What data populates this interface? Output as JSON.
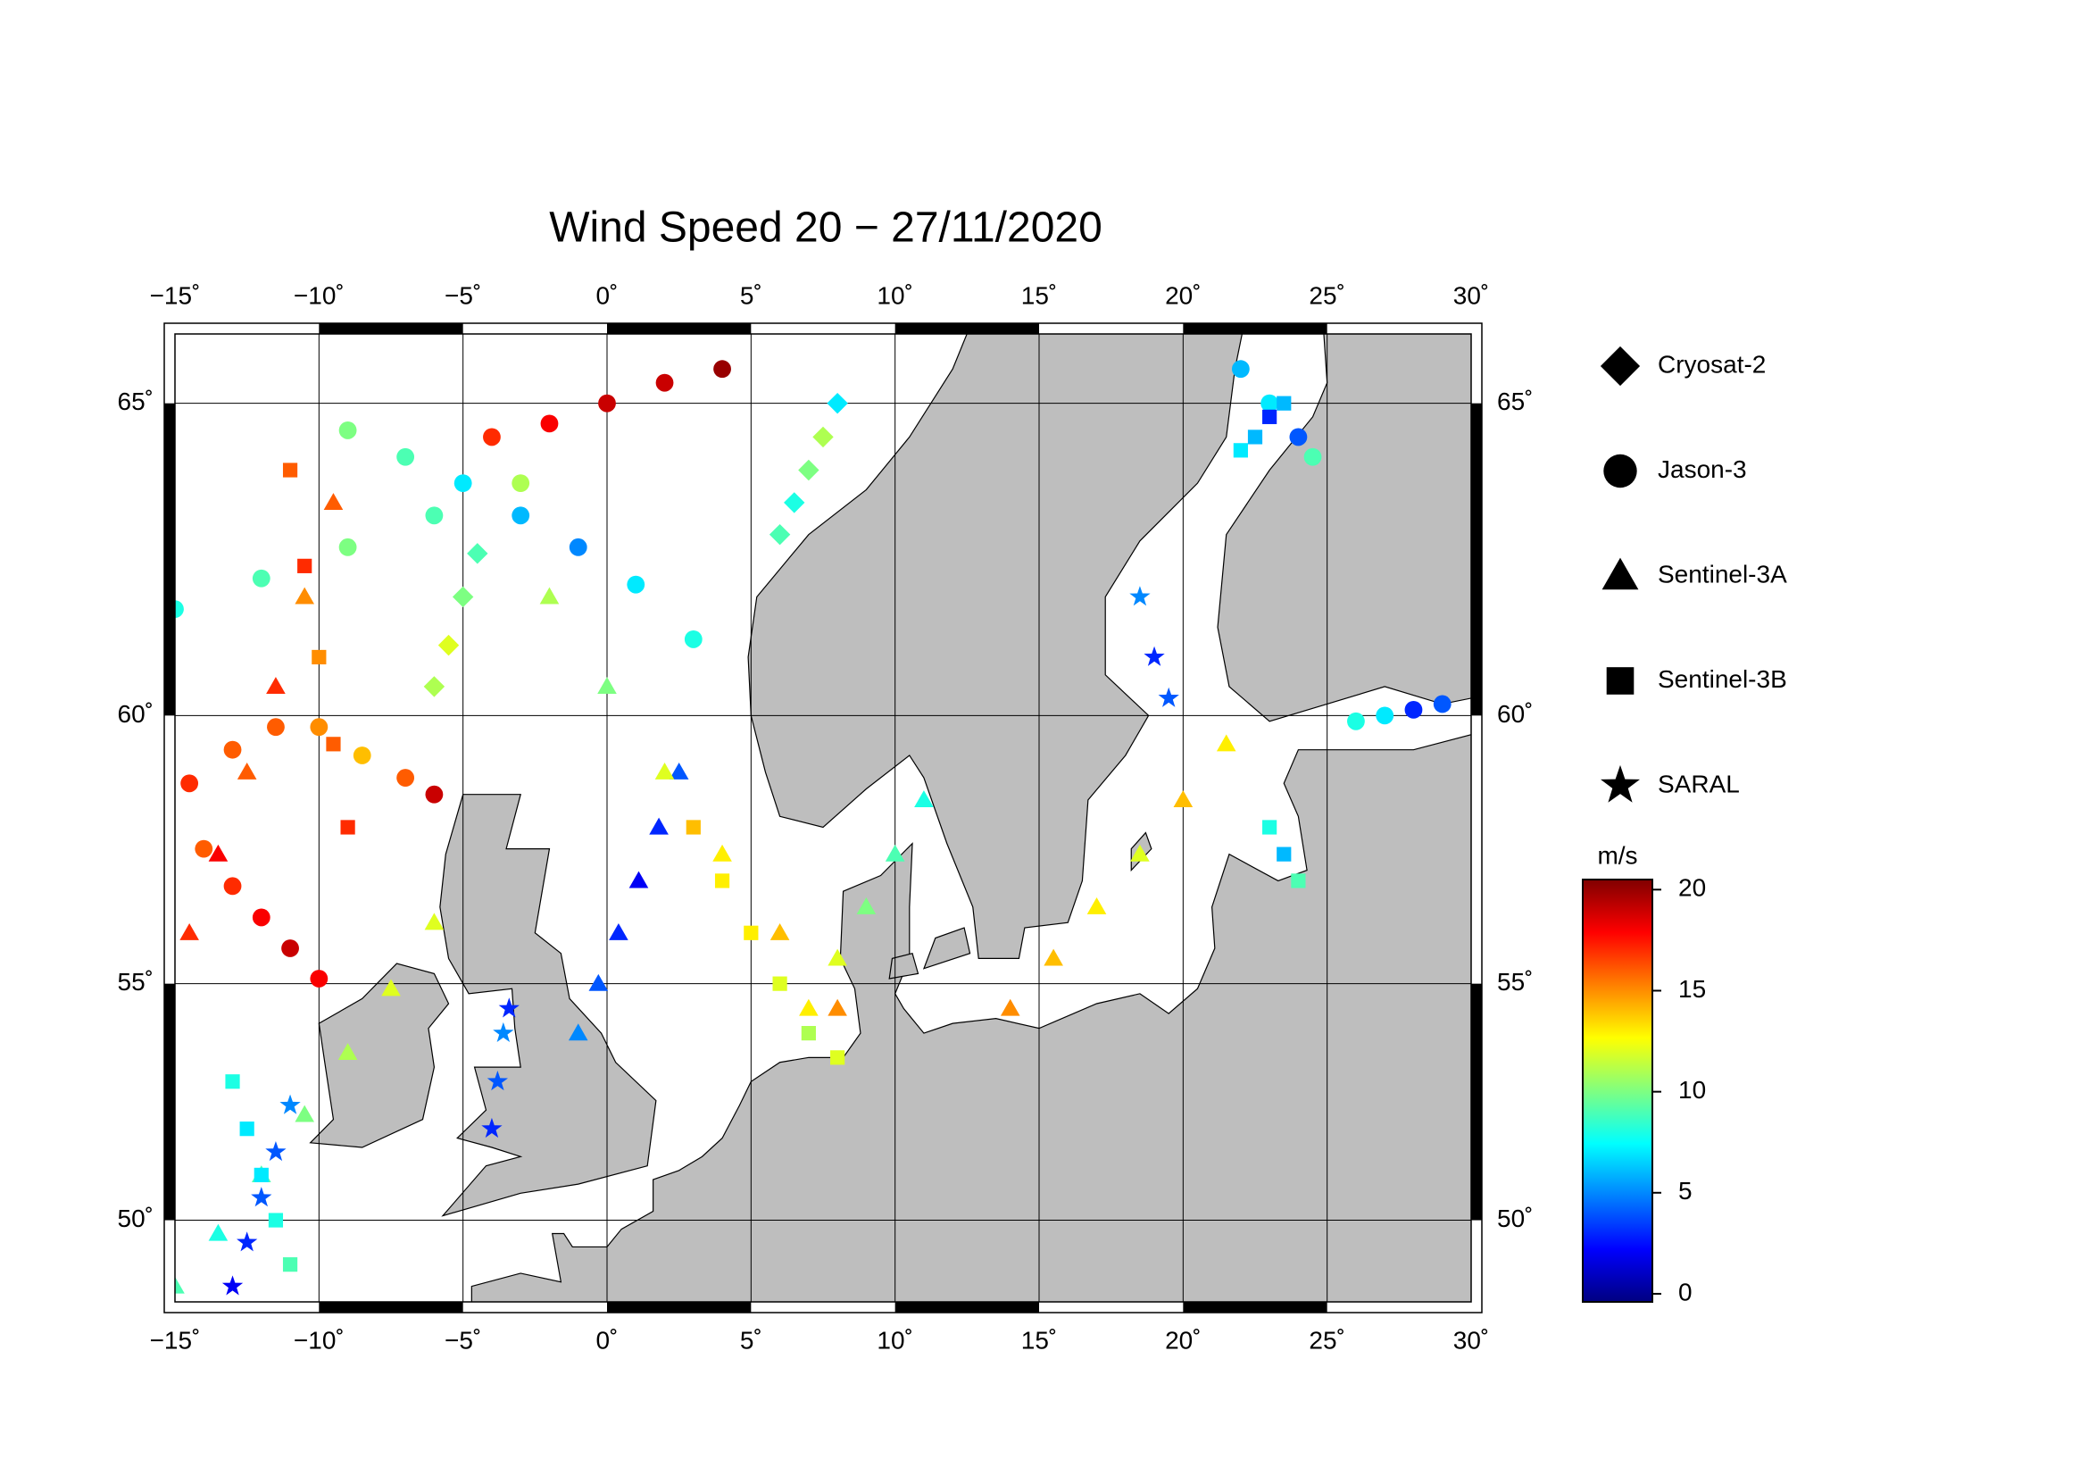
{
  "chart_data": {
    "type": "map",
    "title": "Wind Speed 20 − 27/11/2020",
    "xlim": [
      -15,
      30
    ],
    "ylim": [
      48.14,
      66
    ],
    "xticks": [
      {
        "value": -15,
        "label": "−15˚"
      },
      {
        "value": -10,
        "label": "−10˚"
      },
      {
        "value": -5,
        "label": "−5˚"
      },
      {
        "value": 0,
        "label": "0˚"
      },
      {
        "value": 5,
        "label": "5˚"
      },
      {
        "value": 10,
        "label": "10˚"
      },
      {
        "value": 15,
        "label": "15˚"
      },
      {
        "value": 20,
        "label": "20˚"
      },
      {
        "value": 25,
        "label": "25˚"
      },
      {
        "value": 30,
        "label": "30˚"
      }
    ],
    "yticks": [
      {
        "value": 50,
        "label": "50˚"
      },
      {
        "value": 55,
        "label": "55˚"
      },
      {
        "value": 60,
        "label": "60˚"
      },
      {
        "value": 65,
        "label": "65˚"
      }
    ],
    "grid": true,
    "colorbar": {
      "label": "m/s",
      "lim": [
        -0.4,
        20.5
      ],
      "ticks": [
        0,
        5,
        10,
        15,
        20
      ],
      "colormap": "jet"
    },
    "series": [
      {
        "name": "Cryosat-2",
        "marker": "diamond",
        "tracks": [
          {
            "lon": [
              6,
              6.5,
              7,
              7.5,
              8
            ],
            "lat": [
              63,
              63.5,
              64,
              64.5,
              65
            ],
            "values": [
              9,
              8,
              10,
              11,
              7
            ]
          },
          {
            "lon": [
              -6,
              -5.5,
              -5,
              -4.5
            ],
            "lat": [
              60.5,
              61.2,
              62,
              62.7
            ],
            "values": [
              11,
              12,
              10,
              9
            ]
          }
        ]
      },
      {
        "name": "Jason-3",
        "marker": "circle",
        "tracks": [
          {
            "lon": [
              -14.5,
              -13,
              -11.5,
              -10,
              -8.5,
              -7,
              -6
            ],
            "lat": [
              58.8,
              59.4,
              59.8,
              59.8,
              59.3,
              58.9,
              58.6
            ],
            "values": [
              17,
              16,
              16,
              15,
              14,
              16,
              19
            ]
          },
          {
            "lon": [
              -9,
              -7,
              -5,
              -3,
              -1,
              1,
              3
            ],
            "lat": [
              64.6,
              64.2,
              63.8,
              63.3,
              62.8,
              62.2,
              61.3
            ],
            "values": [
              10,
              9,
              7,
              6,
              5,
              7,
              8
            ]
          },
          {
            "lon": [
              -4,
              -2,
              0,
              2,
              4
            ],
            "lat": [
              64.5,
              64.7,
              65,
              65.3,
              65.5
            ],
            "values": [
              17,
              18,
              19,
              19,
              20
            ]
          },
          {
            "lon": [
              -15,
              -12,
              -9,
              -6,
              -3
            ],
            "lat": [
              61.8,
              62.3,
              62.8,
              63.3,
              63.8
            ],
            "values": [
              8,
              9,
              10,
              9,
              11
            ]
          },
          {
            "lon": [
              -14,
              -13,
              -12,
              -11,
              -10
            ],
            "lat": [
              57.6,
              56.9,
              56.3,
              55.7,
              55.1
            ],
            "values": [
              16,
              17,
              18,
              19,
              18
            ]
          },
          {
            "lon": [
              22,
              23,
              24,
              24.5
            ],
            "lat": [
              65.5,
              65,
              64.5,
              64.2
            ],
            "values": [
              6,
              7,
              4,
              9
            ]
          },
          {
            "lon": [
              26,
              27,
              28,
              29
            ],
            "lat": [
              59.9,
              60,
              60.1,
              60.2
            ],
            "values": [
              8,
              7,
              3,
              4
            ]
          }
        ]
      },
      {
        "name": "Sentinel-3A",
        "marker": "triangle",
        "tracks": [
          {
            "lon": [
              -15,
              -13.5,
              -12,
              -10.5,
              -9,
              -7.5,
              -6
            ],
            "lat": [
              48.5,
              49.7,
              51,
              52.3,
              53.6,
              54.9,
              56.2
            ],
            "values": [
              9,
              8,
              9,
              10,
              11,
              12,
              12
            ]
          },
          {
            "lon": [
              2.5,
              1.8,
              1.1,
              0.4,
              -0.3,
              -1
            ],
            "lat": [
              59,
              58,
              57,
              56,
              55,
              54
            ],
            "values": [
              4,
              3,
              2,
              3,
              4,
              5
            ]
          },
          {
            "lon": [
              -2,
              0,
              2,
              4,
              6,
              8
            ],
            "lat": [
              62,
              60.5,
              59,
              57.5,
              56,
              54.5
            ],
            "values": [
              11,
              10,
              12,
              13,
              14,
              15
            ]
          },
          {
            "lon": [
              -14.5,
              -13.5,
              -12.5,
              -11.5,
              -10.5,
              -9.5
            ],
            "lat": [
              56,
              57.5,
              59,
              60.5,
              62,
              63.5
            ],
            "values": [
              17,
              18,
              16,
              17,
              15,
              16
            ]
          },
          {
            "lon": [
              14,
              15.5,
              17,
              18.5,
              20,
              21.5
            ],
            "lat": [
              54.5,
              55.5,
              56.5,
              57.5,
              58.5,
              59.5
            ],
            "values": [
              15,
              14,
              13,
              12,
              14,
              13
            ]
          },
          {
            "lon": [
              7,
              8,
              9,
              10,
              11
            ],
            "lat": [
              54.5,
              55.5,
              56.5,
              57.5,
              58.5
            ],
            "values": [
              13,
              12,
              10,
              9,
              8
            ]
          }
        ]
      },
      {
        "name": "Sentinel-3B",
        "marker": "square",
        "tracks": [
          {
            "lon": [
              -11,
              -10.5,
              -10,
              -9.5,
              -9
            ],
            "lat": [
              64,
              62.5,
              61,
              59.5,
              58
            ],
            "values": [
              16,
              17,
              15,
              16,
              17
            ]
          },
          {
            "lon": [
              3,
              4,
              5,
              6,
              7,
              8
            ],
            "lat": [
              58,
              57,
              56,
              55,
              54,
              53.5
            ],
            "values": [
              14,
              13,
              13,
              12,
              11,
              12
            ]
          },
          {
            "lon": [
              -13,
              -12.5,
              -12,
              -11.5,
              -11
            ],
            "lat": [
              53,
              52,
              51,
              50,
              49
            ],
            "values": [
              8,
              7,
              7,
              8,
              9
            ]
          },
          {
            "lon": [
              22,
              22.5,
              23,
              23.5
            ],
            "lat": [
              64.3,
              64.5,
              64.8,
              65
            ],
            "values": [
              7,
              6,
              3,
              6
            ]
          },
          {
            "lon": [
              23,
              23.5,
              24
            ],
            "lat": [
              58,
              57.5,
              57
            ],
            "values": [
              8,
              6,
              9
            ]
          }
        ]
      },
      {
        "name": "SARAL",
        "marker": "star",
        "tracks": [
          {
            "lon": [
              -13,
              -12.5,
              -12,
              -11.5,
              -11
            ],
            "lat": [
              48.5,
              49.5,
              50.5,
              51.5,
              52.5
            ],
            "values": [
              2,
              3,
              4,
              4,
              5
            ]
          },
          {
            "lon": [
              -4,
              -3.8,
              -3.6,
              -3.4
            ],
            "lat": [
              52,
              53,
              54,
              54.5
            ],
            "values": [
              3,
              4,
              5,
              3
            ]
          },
          {
            "lon": [
              18.5,
              19,
              19.5
            ],
            "lat": [
              62,
              61,
              60.3
            ],
            "values": [
              5,
              3,
              4
            ]
          }
        ]
      }
    ]
  }
}
